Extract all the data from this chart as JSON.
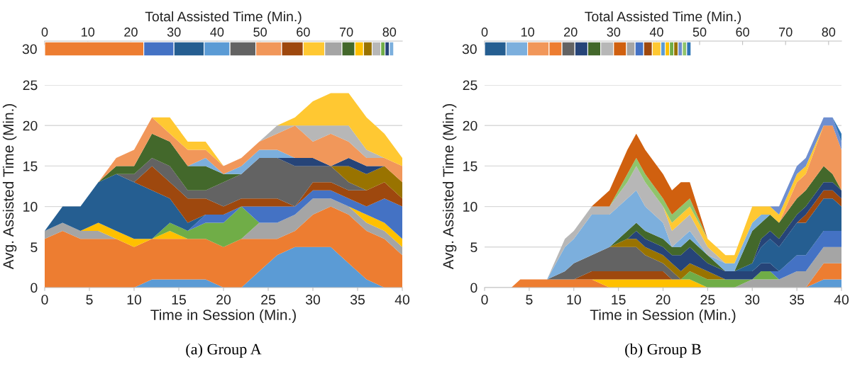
{
  "chart_data": [
    {
      "type": "bar",
      "orientation": "horizontal",
      "stacked": true,
      "xlabel": "Total Assisted Time (Min.)",
      "categories": [
        "30"
      ],
      "xlim": [
        0,
        83
      ],
      "xticks": [
        0,
        10,
        20,
        30,
        40,
        50,
        60,
        70,
        80
      ],
      "grid": false,
      "legend": false,
      "series": [
        {
          "color": "#ed7d31",
          "values": [
            23
          ]
        },
        {
          "color": "#4472c4",
          "values": [
            7
          ]
        },
        {
          "color": "#255e91",
          "values": [
            7
          ]
        },
        {
          "color": "#5b9bd5",
          "values": [
            6
          ]
        },
        {
          "color": "#636363",
          "values": [
            6
          ]
        },
        {
          "color": "#f1975a",
          "values": [
            6
          ]
        },
        {
          "color": "#9e480e",
          "values": [
            5
          ]
        },
        {
          "color": "#ffc832",
          "values": [
            5
          ]
        },
        {
          "color": "#a5a5a5",
          "values": [
            4
          ]
        },
        {
          "color": "#43682b",
          "values": [
            3
          ]
        },
        {
          "color": "#ffc000",
          "values": [
            2
          ]
        },
        {
          "color": "#997300",
          "values": [
            2
          ]
        },
        {
          "color": "#b7b7b7",
          "values": [
            2
          ]
        },
        {
          "color": "#70ad47",
          "values": [
            1
          ]
        },
        {
          "color": "#264478",
          "values": [
            1
          ]
        },
        {
          "color": "#7cafdd",
          "values": [
            1
          ]
        }
      ]
    },
    {
      "type": "area",
      "stacked": true,
      "xlabel": "Time in Session (Min.)",
      "ylabel": "Avg. Assisted Time (Min.)",
      "xlim": [
        0,
        40
      ],
      "xticks": [
        0,
        5,
        10,
        15,
        20,
        25,
        30,
        35,
        40
      ],
      "ylim": [
        0,
        25
      ],
      "yticks": [
        0,
        5,
        10,
        15,
        20,
        25
      ],
      "grid": "y",
      "legend": false,
      "annotations": [
        "(a) Group A"
      ],
      "x": [
        0,
        2,
        4,
        6,
        8,
        10,
        12,
        14,
        16,
        18,
        20,
        22,
        24,
        26,
        28,
        30,
        32,
        34,
        36,
        38,
        40
      ],
      "series": [
        {
          "color": "#5b9bd5",
          "values": [
            null,
            null,
            null,
            null,
            null,
            0,
            1,
            1,
            1,
            1,
            0,
            0,
            2,
            4,
            5,
            5,
            5,
            3,
            1,
            0,
            null
          ]
        },
        {
          "color": "#ed7d31",
          "values": [
            6,
            7,
            6,
            6,
            6,
            5,
            5,
            5,
            5,
            5,
            5,
            6,
            4,
            2,
            2,
            4,
            5,
            6,
            6,
            6,
            4
          ]
        },
        {
          "color": "#a5a5a5",
          "values": [
            1,
            1,
            1,
            1,
            0,
            null,
            null,
            null,
            null,
            null,
            null,
            0,
            2,
            2,
            2,
            2,
            1,
            1,
            1,
            1,
            1
          ]
        },
        {
          "color": "#ffc000",
          "values": [
            null,
            null,
            0,
            1,
            1,
            1,
            0,
            1,
            0,
            null,
            null,
            null,
            null,
            null,
            null,
            null,
            null,
            0,
            1,
            1,
            1
          ]
        },
        {
          "color": "#70ad47",
          "values": [
            null,
            null,
            null,
            null,
            null,
            null,
            0,
            1,
            1,
            2,
            3,
            4,
            0,
            null,
            null,
            null,
            null,
            null,
            null,
            null,
            null
          ]
        },
        {
          "color": "#4472c4",
          "values": [
            null,
            null,
            null,
            null,
            null,
            null,
            null,
            null,
            0,
            1,
            1,
            0,
            2,
            2,
            1,
            1,
            1,
            1,
            1,
            3,
            4
          ]
        },
        {
          "color": "#255e91",
          "values": [
            0,
            2,
            3,
            5,
            7,
            7,
            6,
            3,
            1,
            0,
            null,
            null,
            null,
            null,
            null,
            null,
            null,
            null,
            null,
            null,
            null
          ]
        },
        {
          "color": "#9e480e",
          "values": [
            null,
            null,
            null,
            null,
            null,
            0,
            3,
            2,
            3,
            2,
            1,
            1,
            1,
            1,
            0,
            1,
            1,
            1,
            2,
            2,
            1
          ]
        },
        {
          "color": "#636363",
          "values": [
            null,
            null,
            null,
            null,
            0,
            1,
            1,
            2,
            1,
            1,
            3,
            3,
            5,
            5,
            5,
            2,
            2,
            1,
            0,
            null,
            null
          ]
        },
        {
          "color": "#997300",
          "values": [
            null,
            null,
            null,
            null,
            null,
            null,
            null,
            null,
            null,
            null,
            null,
            null,
            null,
            null,
            null,
            null,
            0,
            2,
            2,
            2,
            2
          ]
        },
        {
          "color": "#264478",
          "values": [
            null,
            null,
            null,
            null,
            null,
            null,
            null,
            null,
            null,
            null,
            null,
            null,
            null,
            0,
            1,
            1,
            0,
            1,
            1,
            0,
            null
          ]
        },
        {
          "color": "#43682b",
          "values": [
            null,
            null,
            null,
            0,
            1,
            1,
            3,
            3,
            3,
            3,
            1,
            0,
            null,
            null,
            null,
            null,
            null,
            null,
            null,
            null,
            null
          ]
        },
        {
          "color": "#7cafdd",
          "values": [
            null,
            null,
            null,
            null,
            null,
            null,
            null,
            null,
            0,
            1,
            0,
            1,
            1,
            1,
            0,
            null,
            null,
            null,
            null,
            null,
            null
          ]
        },
        {
          "color": "#f1975a",
          "values": [
            null,
            null,
            null,
            0,
            1,
            2,
            2,
            1,
            2,
            1,
            1,
            1,
            1,
            2,
            4,
            2,
            4,
            2,
            1,
            1,
            2
          ]
        },
        {
          "color": "#b7b7b7",
          "values": [
            null,
            null,
            null,
            null,
            null,
            null,
            null,
            null,
            null,
            null,
            null,
            null,
            0,
            1,
            0,
            2,
            1,
            2,
            1,
            0,
            null
          ]
        },
        {
          "color": "#ffc832",
          "values": [
            null,
            null,
            null,
            null,
            null,
            null,
            0,
            2,
            1,
            1,
            0,
            null,
            null,
            0,
            1,
            3,
            4,
            4,
            4,
            3,
            1
          ]
        }
      ]
    },
    {
      "type": "bar",
      "orientation": "horizontal",
      "stacked": true,
      "xlabel": "Total Assisted Time (Min.)",
      "categories": [
        "30"
      ],
      "xlim": [
        0,
        83
      ],
      "xticks": [
        0,
        10,
        20,
        30,
        40,
        50,
        60,
        70,
        80
      ],
      "grid": false,
      "legend": false,
      "series": [
        {
          "color": "#255e91",
          "values": [
            5
          ]
        },
        {
          "color": "#7cafdd",
          "values": [
            5
          ]
        },
        {
          "color": "#f1975a",
          "values": [
            5
          ]
        },
        {
          "color": "#ed7d31",
          "values": [
            3
          ]
        },
        {
          "color": "#636363",
          "values": [
            3
          ]
        },
        {
          "color": "#264478",
          "values": [
            3
          ]
        },
        {
          "color": "#43682b",
          "values": [
            3
          ]
        },
        {
          "color": "#b7b7b7",
          "values": [
            3
          ]
        },
        {
          "color": "#d0600f",
          "values": [
            3
          ]
        },
        {
          "color": "#a5a5a5",
          "values": [
            2
          ]
        },
        {
          "color": "#4472c4",
          "values": [
            2
          ]
        },
        {
          "color": "#9e480e",
          "values": [
            2
          ]
        },
        {
          "color": "#ffc832",
          "values": [
            2
          ]
        },
        {
          "color": "#5b9bd5",
          "values": [
            1
          ]
        },
        {
          "color": "#ffc000",
          "values": [
            1
          ]
        },
        {
          "color": "#70ad47",
          "values": [
            1
          ]
        },
        {
          "color": "#997300",
          "values": [
            1
          ]
        },
        {
          "color": "#6f8fd0",
          "values": [
            1
          ]
        },
        {
          "color": "#8fc46c",
          "values": [
            1
          ]
        },
        {
          "color": "#2e75b6",
          "values": [
            1
          ]
        }
      ]
    },
    {
      "type": "area",
      "stacked": true,
      "xlabel": "Time in Session (Min.)",
      "ylabel": "Avg. Assisted Time (Min.)",
      "xlim": [
        0,
        40
      ],
      "xticks": [
        0,
        5,
        10,
        15,
        20,
        25,
        30,
        35,
        40
      ],
      "ylim": [
        0,
        25
      ],
      "yticks": [
        0,
        5,
        10,
        15,
        20,
        25
      ],
      "grid": "y",
      "legend": false,
      "annotations": [
        "(b) Group B"
      ],
      "x": [
        0,
        3,
        4,
        7,
        9,
        10,
        12,
        14,
        16,
        17,
        18,
        20,
        21,
        22,
        23,
        25,
        27,
        28,
        30,
        31,
        32,
        33,
        35,
        36,
        38,
        39,
        40
      ],
      "series": [
        {
          "color": "#5b9bd5",
          "values": [
            null,
            null,
            null,
            null,
            null,
            null,
            null,
            null,
            null,
            null,
            null,
            null,
            null,
            null,
            null,
            null,
            null,
            null,
            null,
            null,
            null,
            null,
            null,
            0,
            1,
            1,
            1
          ]
        },
        {
          "color": "#ed7d31",
          "values": [
            0,
            0,
            1,
            1,
            1,
            1,
            1,
            0,
            null,
            null,
            null,
            null,
            null,
            null,
            null,
            null,
            null,
            null,
            null,
            null,
            null,
            null,
            null,
            0,
            2,
            2,
            2
          ]
        },
        {
          "color": "#ffc000",
          "values": [
            null,
            null,
            null,
            null,
            null,
            null,
            0,
            1,
            1,
            1,
            1,
            1,
            1,
            1,
            1,
            0,
            null,
            null,
            null,
            null,
            null,
            null,
            null,
            null,
            null,
            null,
            null
          ]
        },
        {
          "color": "#a5a5a5",
          "values": [
            null,
            null,
            null,
            null,
            null,
            null,
            null,
            null,
            null,
            null,
            null,
            null,
            null,
            null,
            null,
            null,
            null,
            0,
            1,
            1,
            1,
            1,
            2,
            2,
            2,
            2,
            2
          ]
        },
        {
          "color": "#70ad47",
          "values": [
            null,
            null,
            null,
            null,
            null,
            null,
            null,
            null,
            null,
            null,
            null,
            null,
            null,
            0,
            1,
            1,
            1,
            1,
            0,
            1,
            1,
            0,
            null,
            null,
            null,
            null,
            null
          ]
        },
        {
          "color": "#9e480e",
          "values": [
            null,
            null,
            null,
            null,
            null,
            0,
            1,
            1,
            1,
            1,
            1,
            1,
            0,
            null,
            null,
            null,
            null,
            null,
            null,
            null,
            null,
            null,
            null,
            null,
            null,
            null,
            null
          ]
        },
        {
          "color": "#4472c4",
          "values": [
            null,
            null,
            null,
            null,
            null,
            null,
            null,
            null,
            null,
            null,
            null,
            null,
            null,
            null,
            null,
            null,
            null,
            null,
            null,
            null,
            0,
            1,
            2,
            2,
            2,
            2,
            2
          ]
        },
        {
          "color": "#636363",
          "values": [
            null,
            null,
            null,
            0,
            1,
            2,
            2,
            3,
            3,
            3,
            2,
            1,
            1,
            0,
            null,
            null,
            null,
            null,
            null,
            null,
            null,
            null,
            null,
            null,
            null,
            null,
            null
          ]
        },
        {
          "color": "#997300",
          "values": [
            null,
            null,
            null,
            null,
            null,
            null,
            null,
            0,
            1,
            1,
            1,
            1,
            1,
            1,
            1,
            1,
            0,
            null,
            null,
            null,
            null,
            null,
            null,
            null,
            null,
            null,
            null
          ]
        },
        {
          "color": "#264478",
          "values": [
            null,
            null,
            null,
            null,
            null,
            null,
            null,
            null,
            0,
            1,
            1,
            1,
            1,
            2,
            2,
            1,
            1,
            1,
            1,
            1,
            1,
            0,
            null,
            null,
            null,
            null,
            null
          ]
        },
        {
          "color": "#43682b",
          "values": [
            null,
            null,
            null,
            null,
            null,
            null,
            null,
            0,
            1,
            1,
            1,
            1,
            1,
            1,
            1,
            1,
            0,
            null,
            null,
            null,
            null,
            null,
            null,
            null,
            null,
            null,
            null
          ]
        },
        {
          "color": "#255e91",
          "values": [
            null,
            null,
            null,
            null,
            null,
            null,
            null,
            null,
            null,
            null,
            null,
            null,
            null,
            null,
            null,
            null,
            null,
            0,
            1,
            2,
            3,
            3,
            4,
            4,
            4,
            4,
            3
          ]
        },
        {
          "color": "#9e480e",
          "values": [
            null,
            null,
            null,
            null,
            null,
            null,
            null,
            null,
            null,
            null,
            null,
            null,
            null,
            null,
            null,
            null,
            null,
            null,
            null,
            null,
            null,
            null,
            0,
            1,
            1,
            1,
            1
          ]
        },
        {
          "color": "#264478",
          "values": [
            null,
            null,
            null,
            null,
            null,
            null,
            null,
            null,
            null,
            null,
            null,
            null,
            null,
            null,
            null,
            null,
            null,
            null,
            0,
            1,
            1,
            1,
            1,
            1,
            1,
            1,
            1
          ]
        },
        {
          "color": "#43682b",
          "values": [
            null,
            null,
            null,
            null,
            null,
            null,
            null,
            null,
            null,
            null,
            null,
            null,
            null,
            null,
            null,
            null,
            null,
            0,
            4,
            2,
            2,
            2,
            2,
            2,
            2,
            1,
            0
          ]
        },
        {
          "color": "#7cafdd",
          "values": [
            null,
            null,
            null,
            0,
            3,
            3,
            5,
            4,
            4,
            4,
            3,
            2,
            0,
            1,
            1,
            0,
            1,
            1,
            1,
            1,
            0,
            null,
            null,
            null,
            null,
            null,
            null
          ]
        },
        {
          "color": "#b7b7b7",
          "values": [
            null,
            null,
            null,
            0,
            1,
            1,
            1,
            1,
            2,
            3,
            3,
            2,
            2,
            2,
            2,
            1,
            0,
            null,
            null,
            null,
            null,
            null,
            null,
            null,
            null,
            null,
            null
          ]
        },
        {
          "color": "#f1975a",
          "values": [
            null,
            null,
            null,
            null,
            null,
            null,
            null,
            null,
            null,
            null,
            null,
            null,
            null,
            null,
            null,
            null,
            null,
            null,
            null,
            null,
            null,
            0,
            2,
            2,
            5,
            6,
            5
          ]
        },
        {
          "color": "#ffc832",
          "values": [
            null,
            null,
            null,
            null,
            null,
            null,
            null,
            null,
            null,
            null,
            null,
            0,
            1,
            1,
            1,
            1,
            1,
            1,
            2,
            1,
            1,
            1,
            1,
            1,
            0,
            null,
            null
          ]
        },
        {
          "color": "#8fc46c",
          "values": [
            null,
            null,
            null,
            null,
            null,
            null,
            null,
            0,
            1,
            1,
            1,
            1,
            1,
            1,
            1,
            0,
            null,
            null,
            null,
            null,
            null,
            null,
            null,
            null,
            null,
            null,
            null
          ]
        },
        {
          "color": "#d0600f",
          "values": [
            null,
            null,
            null,
            null,
            null,
            null,
            0,
            2,
            3,
            3,
            3,
            3,
            3,
            3,
            2,
            0,
            null,
            null,
            null,
            null,
            null,
            null,
            null,
            null,
            null,
            null,
            null
          ]
        },
        {
          "color": "#6f8fd0",
          "values": [
            null,
            null,
            null,
            null,
            null,
            null,
            null,
            null,
            null,
            null,
            null,
            null,
            null,
            null,
            null,
            null,
            null,
            null,
            null,
            null,
            0,
            1,
            1,
            1,
            1,
            1,
            1
          ]
        },
        {
          "color": "#2e75b6",
          "values": [
            null,
            null,
            null,
            null,
            null,
            null,
            null,
            null,
            null,
            null,
            null,
            null,
            null,
            null,
            null,
            null,
            null,
            null,
            null,
            null,
            null,
            null,
            null,
            null,
            null,
            0,
            1
          ]
        }
      ]
    }
  ]
}
